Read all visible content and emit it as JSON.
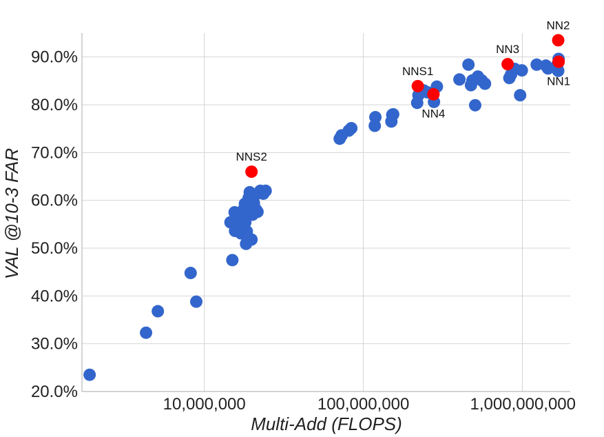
{
  "chart_data": {
    "type": "scatter",
    "title": "",
    "xlabel": "Multi-Add (FLOPS)",
    "ylabel": "VAL @10-3 FAR",
    "x_scale": "log",
    "xlim": [
      1700000,
      2000000000
    ],
    "ylim": [
      20,
      95
    ],
    "grid": true,
    "x_ticks": [
      {
        "value": 10000000,
        "label": "10,000,000"
      },
      {
        "value": 100000000,
        "label": "100,000,000"
      },
      {
        "value": 1000000000,
        "label": "1,000,000,000"
      }
    ],
    "y_ticks": [
      {
        "value": 20,
        "label": "20.0%"
      },
      {
        "value": 30,
        "label": "30.0%"
      },
      {
        "value": 40,
        "label": "40.0%"
      },
      {
        "value": 50,
        "label": "50.0%"
      },
      {
        "value": 60,
        "label": "60.0%"
      },
      {
        "value": 70,
        "label": "70.0%"
      },
      {
        "value": 80,
        "label": "80.0%"
      },
      {
        "value": 90,
        "label": "90.0%"
      }
    ],
    "colors": {
      "other": "#3366cc",
      "highlight": "#ff0000"
    },
    "series": [
      {
        "points": [
          [
            1900000,
            23.5
          ],
          [
            4300000,
            32.3
          ],
          [
            5100000,
            36.8
          ],
          [
            8200000,
            44.8
          ],
          [
            8900000,
            38.8
          ],
          [
            15000000,
            47.5
          ],
          [
            14600000,
            55.4
          ],
          [
            15500000,
            57.5
          ],
          [
            15600000,
            53.6
          ],
          [
            16000000,
            54.9
          ],
          [
            16500000,
            56.5
          ],
          [
            17000000,
            53.1
          ],
          [
            17300000,
            56.0
          ],
          [
            17600000,
            58.0
          ],
          [
            18000000,
            59.3
          ],
          [
            18100000,
            55.4
          ],
          [
            18300000,
            50.9
          ],
          [
            18500000,
            53.5
          ],
          [
            18800000,
            57.3
          ],
          [
            19000000,
            60.5
          ],
          [
            19300000,
            61.7
          ],
          [
            19600000,
            58.3
          ],
          [
            19800000,
            51.8
          ],
          [
            20100000,
            57.0
          ],
          [
            20500000,
            59.4
          ],
          [
            21000000,
            61.2
          ],
          [
            21200000,
            58.0
          ],
          [
            21600000,
            57.6
          ],
          [
            22500000,
            62.0
          ],
          [
            23500000,
            61.4
          ],
          [
            24300000,
            62.0
          ],
          [
            71000000,
            72.9
          ],
          [
            73000000,
            73.6
          ],
          [
            81000000,
            74.6
          ],
          [
            84000000,
            75.1
          ],
          [
            118000000,
            75.6
          ],
          [
            119000000,
            77.4
          ],
          [
            150000000,
            76.5
          ],
          [
            152000000,
            77.9
          ],
          [
            154000000,
            78.0
          ],
          [
            218000000,
            80.4
          ],
          [
            222000000,
            82.0
          ],
          [
            240000000,
            83.0
          ],
          [
            253000000,
            82.6
          ],
          [
            278000000,
            80.6
          ],
          [
            290000000,
            83.8
          ],
          [
            402000000,
            85.3
          ],
          [
            458000000,
            88.4
          ],
          [
            475000000,
            84.1
          ],
          [
            485000000,
            85.1
          ],
          [
            505000000,
            79.9
          ],
          [
            525000000,
            85.9
          ],
          [
            555000000,
            85.1
          ],
          [
            582000000,
            84.4
          ],
          [
            828000000,
            85.6
          ],
          [
            848000000,
            86.3
          ],
          [
            895000000,
            87.5
          ],
          [
            968000000,
            82.0
          ],
          [
            992000000,
            87.2
          ],
          [
            1230000000,
            88.4
          ],
          [
            1405000000,
            88.2
          ],
          [
            1450000000,
            87.6
          ],
          [
            1660000000,
            88.4
          ],
          [
            1680000000,
            87.1
          ],
          [
            1690000000,
            89.6
          ]
        ]
      },
      {
        "points": [
          [
            1680000000,
            93.5
          ],
          [
            1690000000,
            89.0
          ],
          [
            808000000,
            88.5
          ],
          [
            220000000,
            83.9
          ],
          [
            276000000,
            82.2
          ],
          [
            19800000,
            66.0
          ]
        ]
      }
    ],
    "annotations": [
      {
        "text": "NN2",
        "x": 1680000000,
        "y": 93.5,
        "pos": "above"
      },
      {
        "text": "NN1",
        "x": 1690000000,
        "y": 89.0,
        "pos": "below"
      },
      {
        "text": "NN3",
        "x": 808000000,
        "y": 88.5,
        "pos": "above"
      },
      {
        "text": "NNS1",
        "x": 220000000,
        "y": 83.9,
        "pos": "above"
      },
      {
        "text": "NN4",
        "x": 276000000,
        "y": 82.2,
        "pos": "below"
      },
      {
        "text": "NNS2",
        "x": 19800000,
        "y": 66.0,
        "pos": "above"
      }
    ]
  }
}
